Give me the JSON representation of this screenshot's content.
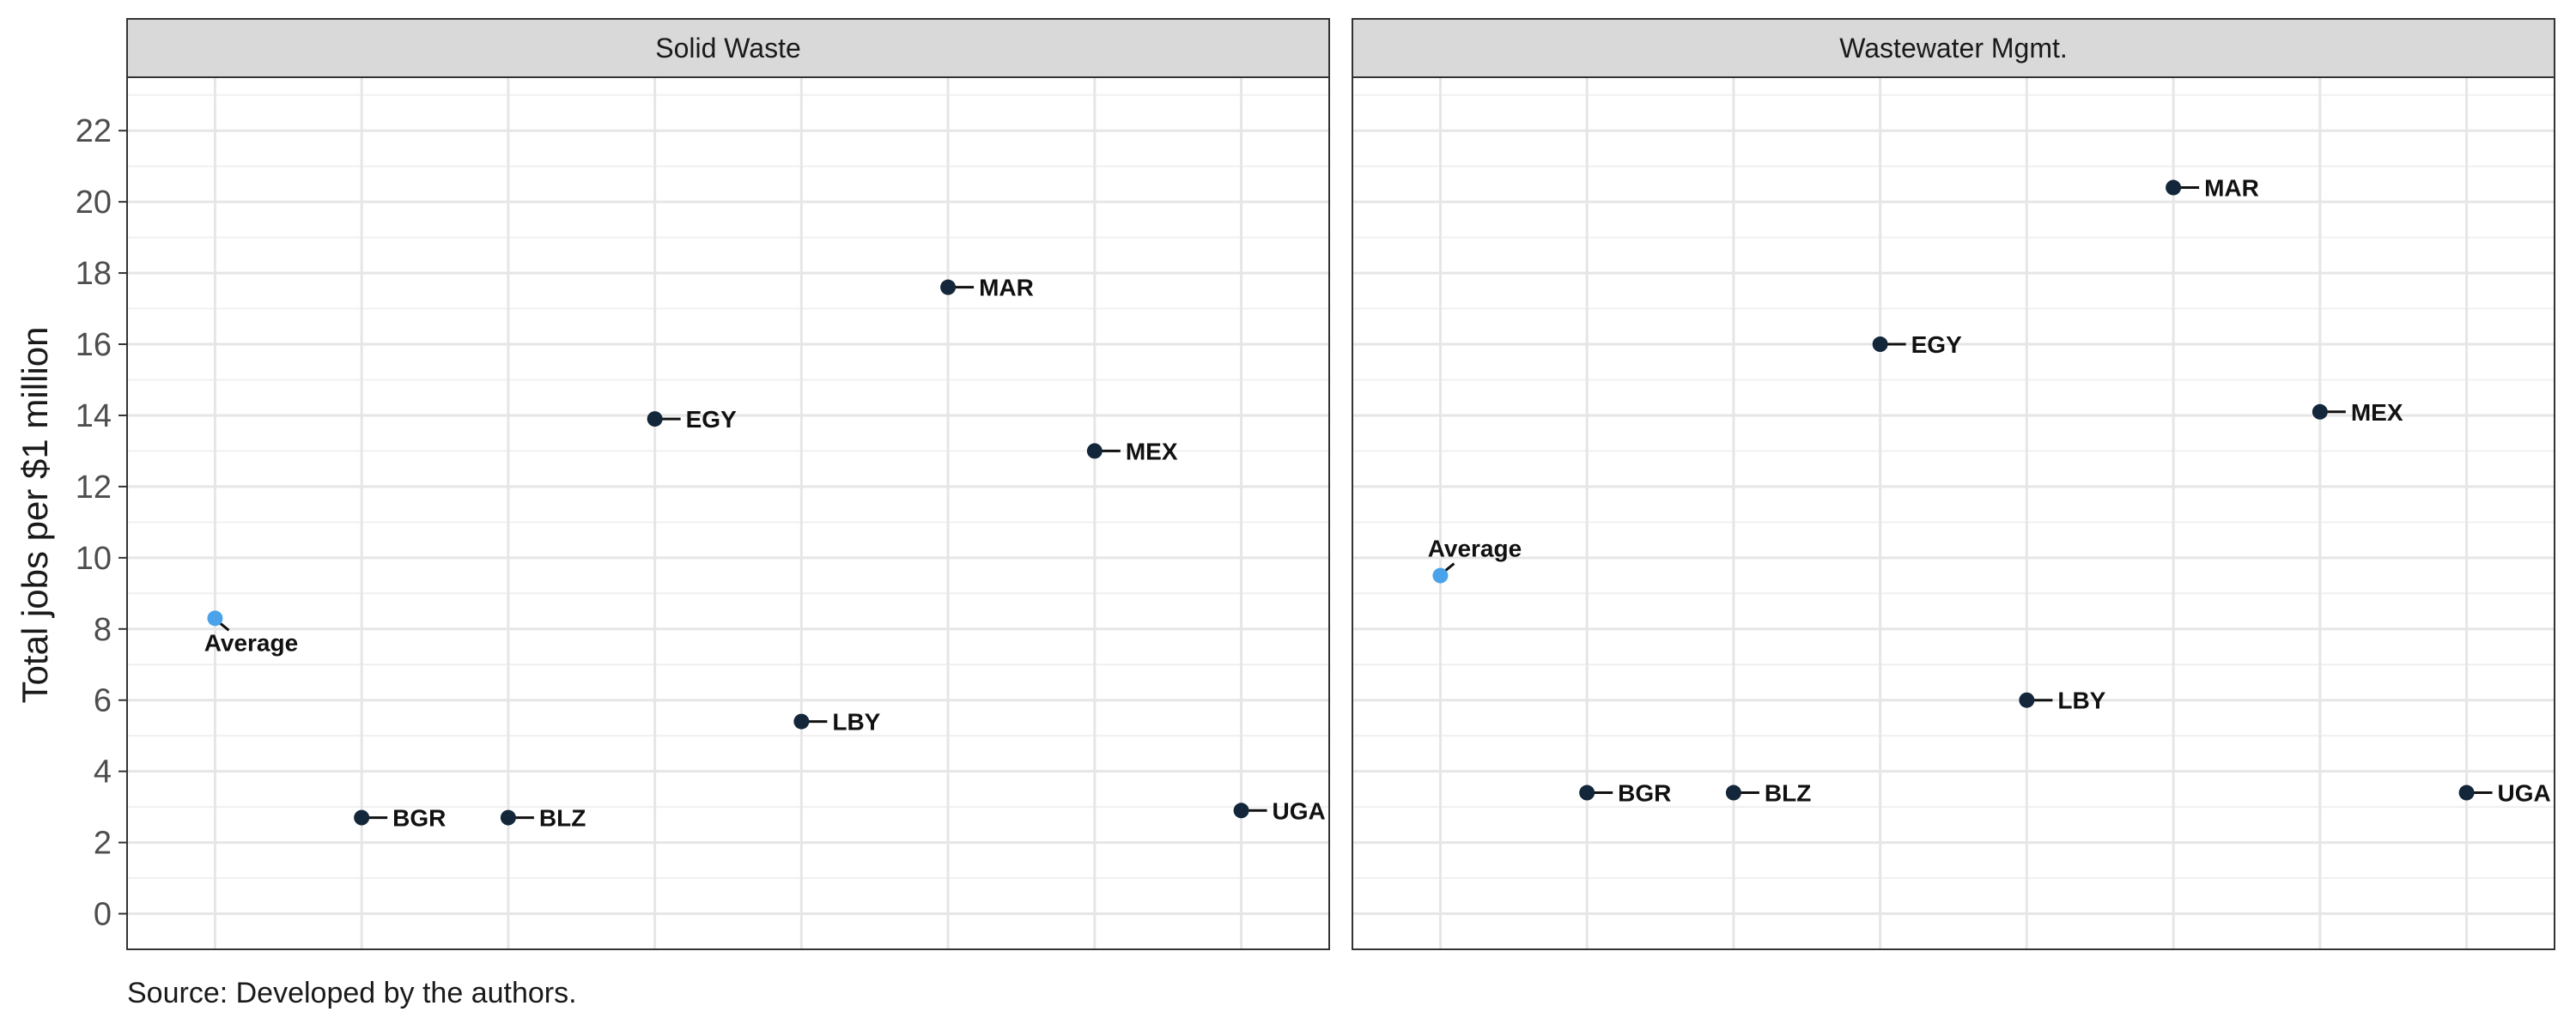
{
  "colors": {
    "point": "#13263a",
    "average": "#4aa3ea",
    "panel_border": "#333333",
    "strip_fill": "#d9d9d9",
    "grid_major": "#e6e6e6",
    "grid_minor": "#f0f0f0"
  },
  "caption": "Source: Developed by the authors.",
  "chart_data": {
    "type": "scatter",
    "ylabel": "Total jobs per $1 million",
    "xlabel": "",
    "ylim": [
      -1,
      23.5
    ],
    "yticks": [
      0,
      2,
      4,
      6,
      8,
      10,
      12,
      14,
      16,
      18,
      20,
      22
    ],
    "categories": [
      "Average",
      "BGR",
      "BLZ",
      "EGY",
      "LBY",
      "MAR",
      "MEX",
      "UGA"
    ],
    "x_tick_labels_shown": false,
    "grid": true,
    "facets": [
      {
        "title": "Solid Waste",
        "points": [
          {
            "label": "Average",
            "y": 8.3
          },
          {
            "label": "BGR",
            "y": 2.7
          },
          {
            "label": "BLZ",
            "y": 2.7
          },
          {
            "label": "EGY",
            "y": 13.9
          },
          {
            "label": "LBY",
            "y": 5.4
          },
          {
            "label": "MAR",
            "y": 17.6
          },
          {
            "label": "MEX",
            "y": 13.0
          },
          {
            "label": "UGA",
            "y": 2.9
          }
        ]
      },
      {
        "title": "Wastewater Mgmt.",
        "points": [
          {
            "label": "Average",
            "y": 9.5
          },
          {
            "label": "BGR",
            "y": 3.4
          },
          {
            "label": "BLZ",
            "y": 3.4
          },
          {
            "label": "EGY",
            "y": 16.0
          },
          {
            "label": "LBY",
            "y": 6.0
          },
          {
            "label": "MAR",
            "y": 20.4
          },
          {
            "label": "MEX",
            "y": 14.1
          },
          {
            "label": "UGA",
            "y": 3.4
          }
        ]
      }
    ]
  }
}
